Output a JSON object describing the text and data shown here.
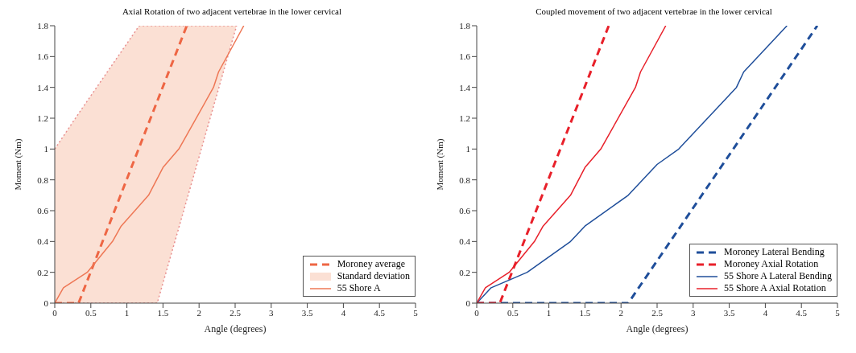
{
  "chart_data": [
    {
      "type": "line",
      "title": "Axial Rotation of two adjacent vertebrae in the lower cervical",
      "xlabel": "Angle (degrees)",
      "ylabel": "Moment (Nm)",
      "xlim": [
        0,
        5
      ],
      "xticks": [
        0,
        0.5,
        1,
        1.5,
        2,
        2.5,
        3,
        3.5,
        4,
        4.5,
        5
      ],
      "ylim": [
        0,
        1.8
      ],
      "yticks": [
        0,
        0.2,
        0.4,
        0.6,
        0.8,
        1,
        1.2,
        1.4,
        1.6,
        1.8
      ],
      "grid": false,
      "legend": "bottom right",
      "annotations": [
        "Standard deviation"
      ],
      "series": [
        {
          "name": "Moroney average",
          "color": "#ee6644",
          "line_style": "dashed",
          "x": [
            0,
            0.33,
            1.17,
            1.42,
            1.83,
            2.52
          ],
          "values": [
            0,
            0,
            1.01,
            1.31,
            1.8,
            null
          ],
          "lower": [
            0,
            0,
            0,
            0,
            0.67,
            1.8
          ],
          "upper": [
            1.0,
            1.23,
            1.8,
            1.8,
            1.8,
            1.8
          ]
        },
        {
          "name": "55 Shore A",
          "color": "#ee7755",
          "line_style": "solid",
          "x": [
            0,
            0.12,
            0.45,
            0.8,
            0.92,
            1.3,
            1.5,
            1.72,
            2.2,
            2.27,
            2.62
          ],
          "values": [
            0,
            0.1,
            0.2,
            0.4,
            0.5,
            0.7,
            0.88,
            1.0,
            1.4,
            1.5,
            1.8
          ]
        }
      ]
    },
    {
      "type": "line",
      "title": "Coupled movement of two adjacent vertebrae in the lower cervical",
      "xlabel": "Angle (degrees)",
      "ylabel": "Moment (Nm)",
      "xlim": [
        0,
        5
      ],
      "xticks": [
        0,
        0.5,
        1,
        1.5,
        2,
        2.5,
        3,
        3.5,
        4,
        4.5,
        5
      ],
      "ylim": [
        0,
        1.8
      ],
      "yticks": [
        0,
        0.2,
        0.4,
        0.6,
        0.8,
        1,
        1.2,
        1.4,
        1.6,
        1.8
      ],
      "grid": false,
      "legend": "bottom right",
      "series": [
        {
          "name": "Moroney Lateral Bending",
          "color": "#1f4e9a",
          "line_style": "dashed",
          "x": [
            0,
            2.1,
            4.72
          ],
          "values": [
            0,
            0,
            1.8
          ]
        },
        {
          "name": "Moroney Axial Rotation",
          "color": "#e8202a",
          "line_style": "dashed",
          "x": [
            0,
            0.32,
            1.83
          ],
          "values": [
            0,
            0,
            1.8
          ]
        },
        {
          "name": "55 Shore A Lateral Bending",
          "color": "#1f4e9a",
          "line_style": "solid",
          "x": [
            0,
            0.2,
            0.5,
            0.7,
            1.3,
            1.5,
            2.1,
            2.5,
            2.8,
            3.6,
            3.7,
            4.3
          ],
          "values": [
            0,
            0.1,
            0.16,
            0.2,
            0.4,
            0.5,
            0.7,
            0.9,
            1.0,
            1.4,
            1.5,
            1.8
          ]
        },
        {
          "name": "55 Shore A Axial Rotation",
          "color": "#e8202a",
          "line_style": "solid",
          "x": [
            0,
            0.12,
            0.45,
            0.8,
            0.92,
            1.3,
            1.5,
            1.72,
            2.2,
            2.27,
            2.62
          ],
          "values": [
            0,
            0.1,
            0.2,
            0.4,
            0.5,
            0.7,
            0.88,
            1.0,
            1.4,
            1.5,
            1.8
          ]
        }
      ]
    }
  ]
}
